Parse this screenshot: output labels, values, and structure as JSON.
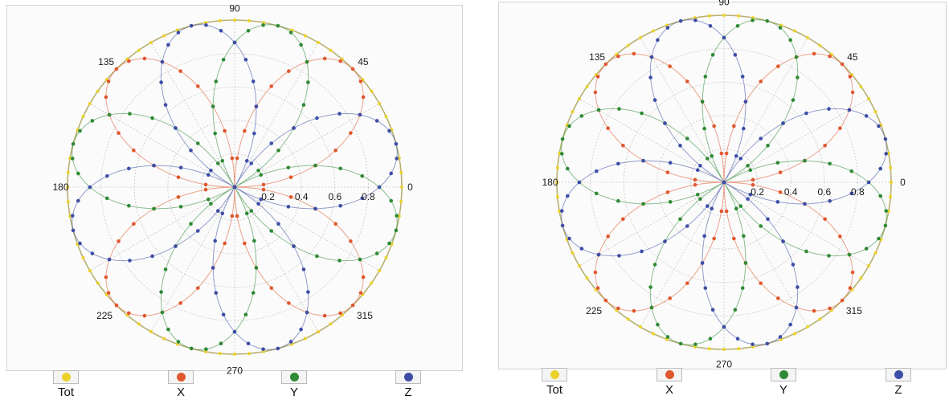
{
  "colors": {
    "Tot": "#ecd12a",
    "X": "#e0572e",
    "Y": "#2e8a34",
    "Z": "#3d4ea6",
    "grid": "#c8c8c8",
    "outer_ring": "#b8b070"
  },
  "chart_data": [
    {
      "type": "polar-line",
      "radial_ticks": [
        "0.2",
        "0.4",
        "0.6",
        "0.8"
      ],
      "angle_labels": [
        "0",
        "45",
        "90",
        "135",
        "180",
        "225",
        "270",
        "315"
      ],
      "rlim": [
        0,
        1
      ],
      "grid": true,
      "legend_position": "bottom",
      "series": [
        {
          "name": "Tot",
          "shape": "r = 1",
          "rotation_deg": 0
        },
        {
          "name": "X",
          "shape": "r = |sin 2θ|",
          "rotation_deg": 0
        },
        {
          "name": "Y",
          "shape": "r = |sin 2θ|",
          "rotation_deg": 30
        },
        {
          "name": "Z",
          "shape": "r = |sin 2θ|",
          "rotation_deg": -30
        }
      ]
    },
    {
      "type": "polar-line",
      "radial_ticks": [
        "0.2",
        "0.4",
        "0.6",
        "0.8"
      ],
      "angle_labels": [
        "0",
        "45",
        "90",
        "135",
        "180",
        "225",
        "270",
        "315"
      ],
      "rlim": [
        0,
        1
      ],
      "grid": true,
      "legend_position": "bottom",
      "series": [
        {
          "name": "Tot",
          "shape": "r = 1",
          "rotation_deg": 0
        },
        {
          "name": "X",
          "shape": "r = |sin 2θ|",
          "rotation_deg": 0
        },
        {
          "name": "Y",
          "shape": "r = |sin 2θ|",
          "rotation_deg": 30
        },
        {
          "name": "Z",
          "shape": "r = |sin 2θ|",
          "rotation_deg": -30
        }
      ]
    }
  ],
  "legend": {
    "left": [
      "Tot",
      "X",
      "Y",
      "Z"
    ],
    "right": [
      "Tot",
      "X",
      "Y",
      "Z"
    ]
  }
}
